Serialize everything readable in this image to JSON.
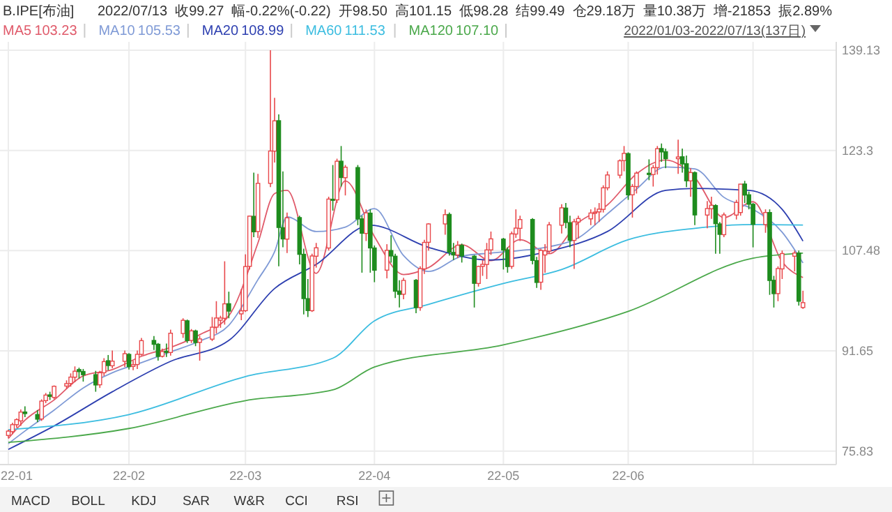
{
  "chart_data": {
    "type": "candlestick",
    "title": "B.IPE[布油]",
    "subtitle": "2022/07/13  收99.27  幅-0.22%(-0.22)  开98.50  高101.15  低98.28  结99.49  仓29.18万  量10.38万  增-21853  振2.89%",
    "x": [
      "2022-01-03",
      "2022-01-04",
      "2022-01-05",
      "2022-01-06",
      "2022-01-07",
      "2022-01-10",
      "2022-01-11",
      "2022-01-12",
      "2022-01-13",
      "2022-01-14",
      "2022-01-17",
      "2022-01-18",
      "2022-01-19",
      "2022-01-20",
      "2022-01-21",
      "2022-01-24",
      "2022-01-25",
      "2022-01-26",
      "2022-01-27",
      "2022-01-28",
      "2022-01-31",
      "2022-02-01",
      "2022-02-02",
      "2022-02-03",
      "2022-02-04",
      "2022-02-07",
      "2022-02-08",
      "2022-02-09",
      "2022-02-10",
      "2022-02-11",
      "2022-02-14",
      "2022-02-15",
      "2022-02-16",
      "2022-02-17",
      "2022-02-18",
      "2022-02-21",
      "2022-02-22",
      "2022-02-23",
      "2022-02-24",
      "2022-02-25",
      "2022-02-28",
      "2022-03-01",
      "2022-03-02",
      "2022-03-03",
      "2022-03-04",
      "2022-03-07",
      "2022-03-08",
      "2022-03-09",
      "2022-03-10",
      "2022-03-11",
      "2022-03-14",
      "2022-03-15",
      "2022-03-16",
      "2022-03-17",
      "2022-03-18",
      "2022-03-21",
      "2022-03-22",
      "2022-03-23",
      "2022-03-24",
      "2022-03-25",
      "2022-03-28",
      "2022-03-29",
      "2022-03-30",
      "2022-03-31",
      "2022-04-01",
      "2022-04-04",
      "2022-04-05",
      "2022-04-06",
      "2022-04-07",
      "2022-04-08",
      "2022-04-11",
      "2022-04-12",
      "2022-04-13",
      "2022-04-14",
      "2022-04-18",
      "2022-04-19",
      "2022-04-20",
      "2022-04-21",
      "2022-04-22",
      "2022-04-25",
      "2022-04-26",
      "2022-04-27",
      "2022-04-28",
      "2022-04-29",
      "2022-05-02",
      "2022-05-03",
      "2022-05-04",
      "2022-05-05",
      "2022-05-06",
      "2022-05-09",
      "2022-05-10",
      "2022-05-11",
      "2022-05-12",
      "2022-05-13",
      "2022-05-16",
      "2022-05-17",
      "2022-05-18",
      "2022-05-19",
      "2022-05-20",
      "2022-05-23",
      "2022-05-24",
      "2022-05-25",
      "2022-05-26",
      "2022-05-27",
      "2022-05-30",
      "2022-05-31",
      "2022-06-01",
      "2022-06-02",
      "2022-06-03",
      "2022-06-06",
      "2022-06-07",
      "2022-06-08",
      "2022-06-09",
      "2022-06-10",
      "2022-06-13",
      "2022-06-14",
      "2022-06-15",
      "2022-06-16",
      "2022-06-17",
      "2022-06-20",
      "2022-06-21",
      "2022-06-22",
      "2022-06-23",
      "2022-06-24",
      "2022-06-27",
      "2022-06-28",
      "2022-06-29",
      "2022-06-30",
      "2022-07-01",
      "2022-07-04",
      "2022-07-05",
      "2022-07-06",
      "2022-07-07",
      "2022-07-08",
      "2022-07-11",
      "2022-07-12",
      "2022-07-13"
    ],
    "ohlc": [
      [
        78.3,
        79.2,
        77.9,
        78.98
      ],
      [
        78.9,
        80.3,
        78.5,
        80.0
      ],
      [
        80.0,
        81.0,
        79.5,
        80.8
      ],
      [
        80.6,
        82.4,
        79.8,
        81.99
      ],
      [
        82.0,
        82.9,
        81.2,
        81.75
      ],
      [
        81.6,
        82.3,
        80.4,
        80.87
      ],
      [
        80.9,
        84.0,
        80.6,
        83.72
      ],
      [
        83.8,
        85.0,
        83.4,
        84.67
      ],
      [
        84.7,
        85.2,
        83.9,
        84.47
      ],
      [
        84.3,
        86.2,
        84.0,
        86.06
      ],
      [
        86.1,
        87.0,
        85.7,
        86.48
      ],
      [
        86.5,
        88.1,
        86.0,
        87.51
      ],
      [
        87.5,
        89.2,
        86.7,
        88.44
      ],
      [
        88.7,
        89.0,
        87.3,
        88.38
      ],
      [
        88.4,
        88.8,
        86.8,
        87.89
      ],
      [
        87.9,
        88.5,
        85.2,
        86.27
      ],
      [
        86.3,
        88.5,
        85.8,
        88.2
      ],
      [
        88.2,
        90.5,
        87.7,
        89.96
      ],
      [
        90.1,
        91.0,
        88.6,
        89.34
      ],
      [
        89.3,
        91.7,
        88.9,
        90.03
      ],
      [
        90.0,
        91.7,
        89.1,
        91.21
      ],
      [
        91.1,
        91.3,
        88.7,
        89.16
      ],
      [
        89.2,
        90.1,
        88.6,
        89.47
      ],
      [
        89.5,
        91.7,
        88.8,
        91.11
      ],
      [
        91.1,
        93.7,
        90.9,
        93.27
      ],
      [
        93.3,
        94.0,
        91.8,
        92.69
      ],
      [
        92.7,
        92.9,
        90.1,
        90.78
      ],
      [
        90.8,
        92.0,
        90.6,
        91.55
      ],
      [
        91.6,
        92.8,
        90.7,
        91.41
      ],
      [
        91.4,
        95.0,
        90.9,
        94.44
      ],
      [
        94.4,
        96.8,
        93.7,
        96.48
      ],
      [
        96.4,
        96.6,
        92.9,
        93.28
      ],
      [
        93.3,
        95.1,
        92.9,
        94.81
      ],
      [
        94.8,
        95.0,
        92.4,
        92.97
      ],
      [
        93.0,
        94.0,
        90.1,
        93.54
      ],
      [
        93.5,
        97.0,
        93.2,
        95.39
      ],
      [
        95.4,
        99.5,
        94.4,
        96.84
      ],
      [
        96.5,
        97.2,
        95.3,
        96.84
      ],
      [
        96.8,
        105.8,
        95.8,
        99.08
      ],
      [
        99.1,
        101.0,
        96.8,
        97.93
      ],
      [
        97.5,
        101.4,
        96.5,
        97.97
      ],
      [
        98.0,
        106.9,
        97.8,
        104.97
      ],
      [
        105.0,
        113.0,
        104.5,
        112.93
      ],
      [
        112.9,
        119.8,
        109.6,
        110.46
      ],
      [
        110.5,
        119.6,
        109.5,
        118.11
      ],
      [
        118.1,
        139.13,
        117.5,
        123.21
      ],
      [
        123.2,
        131.6,
        121.4,
        127.98
      ],
      [
        128.0,
        129.0,
        105.0,
        111.14
      ],
      [
        111.1,
        120.0,
        108.0,
        109.33
      ],
      [
        109.3,
        113.5,
        107.1,
        112.67
      ],
      [
        112.7,
        113.0,
        105.3,
        106.9
      ],
      [
        106.9,
        107.8,
        97.4,
        99.91
      ],
      [
        99.9,
        103.0,
        97.0,
        98.02
      ],
      [
        98.0,
        107.0,
        97.8,
        106.64
      ],
      [
        106.6,
        108.7,
        104.8,
        107.93
      ],
      [
        107.9,
        116.0,
        107.5,
        115.62
      ],
      [
        115.6,
        121.0,
        113.8,
        115.48
      ],
      [
        115.5,
        122.0,
        115.0,
        121.6
      ],
      [
        121.6,
        124.0,
        117.6,
        119.03
      ],
      [
        119.0,
        121.0,
        116.2,
        120.65
      ],
      [
        120.6,
        121.0,
        111.5,
        112.48
      ],
      [
        112.5,
        113.0,
        104.0,
        110.23
      ],
      [
        110.2,
        114.0,
        109.0,
        113.45
      ],
      [
        113.4,
        114.0,
        104.0,
        107.91
      ],
      [
        107.9,
        108.3,
        102.5,
        104.39
      ],
      [
        104.4,
        108.5,
        103.1,
        107.53
      ],
      [
        107.5,
        109.9,
        105.6,
        106.64
      ],
      [
        106.6,
        107.0,
        100.0,
        101.07
      ],
      [
        101.1,
        102.8,
        98.5,
        100.58
      ],
      [
        100.6,
        103.2,
        99.8,
        102.78
      ],
      [
        102.8,
        103.0,
        97.6,
        98.48
      ],
      [
        98.5,
        105.0,
        98.0,
        104.64
      ],
      [
        104.6,
        109.2,
        103.8,
        108.78
      ],
      [
        108.8,
        111.8,
        107.5,
        111.7
      ],
      [
        111.7,
        114.0,
        110.0,
        113.16
      ],
      [
        113.2,
        113.5,
        106.7,
        107.25
      ],
      [
        107.2,
        108.7,
        106.0,
        106.8
      ],
      [
        106.8,
        109.0,
        106.3,
        108.33
      ],
      [
        108.3,
        108.6,
        105.6,
        106.65
      ],
      [
        106.6,
        106.8,
        98.5,
        102.32
      ],
      [
        102.3,
        105.1,
        101.8,
        104.99
      ],
      [
        105.0,
        106.0,
        103.5,
        105.32
      ],
      [
        105.3,
        108.7,
        103.0,
        107.59
      ],
      [
        107.6,
        110.5,
        106.8,
        109.34
      ],
      [
        109.3,
        109.5,
        104.5,
        107.58
      ],
      [
        107.6,
        108.0,
        104.0,
        104.97
      ],
      [
        105.0,
        110.5,
        104.6,
        110.14
      ],
      [
        110.1,
        114.0,
        109.5,
        111.04
      ],
      [
        111.0,
        113.0,
        109.0,
        112.39
      ],
      [
        112.4,
        112.6,
        105.3,
        105.94
      ],
      [
        105.9,
        106.5,
        101.6,
        102.46
      ],
      [
        102.5,
        107.8,
        101.3,
        107.51
      ],
      [
        106.8,
        108.5,
        104.0,
        107.45
      ],
      [
        107.4,
        112.0,
        107.0,
        111.55
      ],
      [
        111.5,
        114.8,
        110.2,
        114.24
      ],
      [
        114.2,
        115.0,
        111.0,
        111.93
      ],
      [
        111.9,
        113.0,
        108.0,
        109.11
      ],
      [
        109.1,
        112.5,
        104.6,
        112.04
      ],
      [
        112.0,
        113.0,
        109.4,
        112.55
      ],
      [
        112.5,
        114.0,
        111.5,
        113.42
      ],
      [
        113.4,
        114.3,
        111.5,
        113.56
      ],
      [
        113.6,
        115.0,
        112.0,
        114.03
      ],
      [
        114.0,
        117.8,
        113.5,
        117.4
      ],
      [
        117.4,
        120.0,
        117.0,
        119.43
      ],
      [
        119.4,
        121.9,
        118.9,
        121.67
      ],
      [
        121.7,
        124.0,
        120.0,
        122.84
      ],
      [
        122.8,
        123.0,
        115.5,
        116.29
      ],
      [
        116.3,
        118.0,
        112.7,
        117.61
      ],
      [
        117.6,
        120.0,
        116.5,
        119.72
      ],
      [
        119.7,
        121.9,
        118.6,
        119.51
      ],
      [
        119.5,
        121.0,
        117.6,
        120.57
      ],
      [
        120.6,
        124.0,
        119.5,
        123.58
      ],
      [
        123.6,
        124.4,
        121.5,
        123.07
      ],
      [
        123.1,
        123.6,
        120.5,
        122.01
      ],
      [
        122.0,
        125.0,
        119.6,
        122.27
      ],
      [
        122.3,
        123.6,
        119.8,
        121.17
      ],
      [
        121.2,
        122.5,
        117.5,
        118.51
      ],
      [
        118.5,
        120.5,
        116.0,
        119.81
      ],
      [
        119.8,
        120.0,
        111.5,
        113.12
      ],
      [
        113.1,
        115.3,
        111.0,
        114.13
      ],
      [
        114.1,
        116.0,
        112.5,
        114.65
      ],
      [
        114.6,
        114.8,
        107.0,
        111.74
      ],
      [
        111.7,
        112.0,
        107.0,
        110.05
      ],
      [
        110.0,
        113.5,
        109.6,
        113.12
      ],
      [
        113.1,
        115.5,
        112.4,
        115.09
      ],
      [
        113.5,
        118.0,
        113.0,
        117.98
      ],
      [
        118.0,
        118.5,
        115.0,
        116.26
      ],
      [
        116.3,
        116.8,
        114.0,
        114.81
      ],
      [
        114.8,
        115.0,
        108.0,
        111.63
      ],
      [
        111.6,
        114.0,
        110.3,
        113.5
      ],
      [
        113.5,
        114.0,
        100.5,
        102.77
      ],
      [
        102.8,
        103.5,
        98.5,
        100.69
      ],
      [
        100.7,
        105.0,
        99.5,
        104.65
      ],
      [
        104.6,
        107.5,
        103.0,
        107.02
      ],
      [
        106.6,
        107.5,
        104.2,
        107.1
      ],
      [
        107.1,
        107.5,
        98.8,
        99.49
      ],
      [
        98.5,
        101.15,
        98.28,
        99.27
      ]
    ],
    "colors": [
      "#e8474a",
      "#e8474a",
      "#e8474a",
      "#e8474a",
      "#1e8c1e",
      "#1e8c1e",
      "#e8474a",
      "#e8474a",
      "#1e8c1e",
      "#e8474a",
      "#e8474a",
      "#e8474a",
      "#e8474a",
      "#1e8c1e",
      "#1e8c1e",
      "#1e8c1e",
      "#e8474a",
      "#e8474a",
      "#1e8c1e",
      "#e8474a",
      "#e8474a",
      "#1e8c1e",
      "#e8474a",
      "#e8474a",
      "#e8474a",
      "#1e8c1e",
      "#1e8c1e",
      "#e8474a",
      "#1e8c1e",
      "#e8474a",
      "#e8474a",
      "#1e8c1e",
      "#e8474a",
      "#1e8c1e",
      "#e8474a",
      "#e8474a",
      "#e8474a",
      "#e8474a",
      "#e8474a",
      "#1e8c1e",
      "#e8474a",
      "#e8474a",
      "#e8474a",
      "#1e8c1e",
      "#e8474a",
      "#e8474a",
      "#e8474a",
      "#1e8c1e",
      "#1e8c1e",
      "#e8474a",
      "#1e8c1e",
      "#1e8c1e",
      "#1e8c1e",
      "#e8474a",
      "#e8474a",
      "#e8474a",
      "#1e8c1e",
      "#e8474a",
      "#1e8c1e",
      "#e8474a",
      "#1e8c1e",
      "#1e8c1e",
      "#e8474a",
      "#1e8c1e",
      "#1e8c1e",
      "#e8474a",
      "#1e8c1e",
      "#1e8c1e",
      "#1e8c1e",
      "#e8474a",
      "#1e8c1e",
      "#e8474a",
      "#e8474a",
      "#e8474a",
      "#e8474a",
      "#1e8c1e",
      "#1e8c1e",
      "#e8474a",
      "#1e8c1e",
      "#1e8c1e",
      "#e8474a",
      "#e8474a",
      "#e8474a",
      "#e8474a",
      "#1e8c1e",
      "#1e8c1e",
      "#e8474a",
      "#e8474a",
      "#e8474a",
      "#1e8c1e",
      "#1e8c1e",
      "#e8474a",
      "#e8474a",
      "#e8474a",
      "#e8474a",
      "#1e8c1e",
      "#1e8c1e",
      "#e8474a",
      "#e8474a",
      "#e8474a",
      "#e8474a",
      "#e8474a",
      "#e8474a",
      "#e8474a",
      "#e8474a",
      "#e8474a",
      "#1e8c1e",
      "#e8474a",
      "#e8474a",
      "#1e8c1e",
      "#e8474a",
      "#e8474a",
      "#1e8c1e",
      "#1e8c1e",
      "#e8474a",
      "#1e8c1e",
      "#1e8c1e",
      "#e8474a",
      "#1e8c1e",
      "#e8474a",
      "#e8474a",
      "#1e8c1e",
      "#1e8c1e",
      "#e8474a",
      "#e8474a",
      "#e8474a",
      "#1e8c1e",
      "#1e8c1e",
      "#1e8c1e",
      "#e8474a",
      "#1e8c1e",
      "#1e8c1e",
      "#e8474a",
      "#e8474a",
      "#e8474a",
      "#1e8c1e",
      "#e8474a"
    ],
    "series": [
      {
        "type": "line",
        "name": "MA5",
        "color": "#e05a6a",
        "x": [
          "2022-01-03",
          "2022-01-07",
          "2022-01-14",
          "2022-01-21",
          "2022-01-28",
          "2022-02-04",
          "2022-02-11",
          "2022-02-18",
          "2022-02-25",
          "2022-03-04",
          "2022-03-08",
          "2022-03-11",
          "2022-03-18",
          "2022-03-25",
          "2022-04-01",
          "2022-04-08",
          "2022-04-14",
          "2022-04-22",
          "2022-04-29",
          "2022-05-06",
          "2022-05-13",
          "2022-05-20",
          "2022-05-27",
          "2022-06-03",
          "2022-06-10",
          "2022-06-17",
          "2022-06-24",
          "2022-07-01",
          "2022-07-08",
          "2022-07-13"
        ],
        "values": [
          77.8,
          80.7,
          83.9,
          87.7,
          88.7,
          90.8,
          92.2,
          94.2,
          97.2,
          108.7,
          116.5,
          117.0,
          103.9,
          118.5,
          109.7,
          103.7,
          104.8,
          108.4,
          105.9,
          109.2,
          107.0,
          111.9,
          114.7,
          119.6,
          121.8,
          119.0,
          112.7,
          115.2,
          105.7,
          103.23
        ]
      },
      {
        "type": "line",
        "name": "MA10",
        "color": "#7f9ad6",
        "x": [
          "2022-01-03",
          "2022-01-07",
          "2022-01-14",
          "2022-01-21",
          "2022-01-28",
          "2022-02-04",
          "2022-02-11",
          "2022-02-18",
          "2022-02-25",
          "2022-03-04",
          "2022-03-08",
          "2022-03-11",
          "2022-03-18",
          "2022-03-25",
          "2022-04-01",
          "2022-04-08",
          "2022-04-14",
          "2022-04-22",
          "2022-04-29",
          "2022-05-06",
          "2022-05-13",
          "2022-05-20",
          "2022-05-27",
          "2022-06-03",
          "2022-06-10",
          "2022-06-17",
          "2022-06-24",
          "2022-07-01",
          "2022-07-08",
          "2022-07-13"
        ],
        "values": [
          77.0,
          79.0,
          82.3,
          85.8,
          88.2,
          89.8,
          91.5,
          93.2,
          95.7,
          102.9,
          107.3,
          112.8,
          110.5,
          111.2,
          114.1,
          106.7,
          104.2,
          106.6,
          107.1,
          107.5,
          108.1,
          109.5,
          113.3,
          117.2,
          120.7,
          120.4,
          115.9,
          114.0,
          110.4,
          105.53
        ]
      },
      {
        "type": "line",
        "name": "MA20",
        "color": "#2d3fb0",
        "x": [
          "2022-01-03",
          "2022-01-14",
          "2022-01-28",
          "2022-02-11",
          "2022-02-25",
          "2022-03-08",
          "2022-03-18",
          "2022-03-31",
          "2022-04-14",
          "2022-04-29",
          "2022-05-13",
          "2022-05-27",
          "2022-06-10",
          "2022-06-17",
          "2022-06-30",
          "2022-07-08",
          "2022-07-13"
        ],
        "values": [
          76.1,
          79.8,
          85.2,
          90.0,
          93.3,
          101.5,
          105.3,
          111.5,
          108.0,
          106.0,
          107.4,
          110.5,
          117.0,
          117.3,
          117.0,
          114.0,
          108.99
        ]
      },
      {
        "type": "line",
        "name": "MA60",
        "color": "#3cbde0",
        "x": [
          "2022-01-03",
          "2022-02-01",
          "2022-03-01",
          "2022-03-22",
          "2022-04-01",
          "2022-04-14",
          "2022-05-02",
          "2022-05-16",
          "2022-06-01",
          "2022-06-17",
          "2022-07-01",
          "2022-07-13"
        ],
        "values": [
          79.2,
          81.6,
          87.6,
          90.5,
          96.4,
          99.0,
          102.3,
          104.5,
          109.2,
          111.0,
          111.6,
          111.53
        ]
      },
      {
        "type": "line",
        "name": "MA120",
        "color": "#4aa84a",
        "x": [
          "2022-01-03",
          "2022-02-01",
          "2022-03-01",
          "2022-03-22",
          "2022-04-01",
          "2022-05-02",
          "2022-06-01",
          "2022-07-01",
          "2022-07-13"
        ],
        "values": [
          77.2,
          79.4,
          83.8,
          85.5,
          89.1,
          92.6,
          97.9,
          106.3,
          107.1
        ]
      }
    ],
    "xlim": [
      "2022-01-01",
      "2022-07-21"
    ],
    "xticks": [
      {
        "value": "2022-01-03",
        "label": "22-01"
      },
      {
        "value": "2022-02-01",
        "label": "22-02"
      },
      {
        "value": "2022-03-01",
        "label": "22-03"
      },
      {
        "value": "2022-04-01",
        "label": "22-04"
      },
      {
        "value": "2022-05-02",
        "label": "22-05"
      },
      {
        "value": "2022-06-01",
        "label": "22-06"
      },
      {
        "value": "2022-07-01",
        "label": null
      }
    ],
    "ylim": [
      73.7,
      140.45
    ],
    "yticks": [
      75.83,
      91.65,
      107.48,
      123.3,
      139.13
    ],
    "grid": true,
    "legend": "top left",
    "annotations": [
      "103.23",
      "105.53",
      "108.99",
      "111.53",
      "107.10",
      "2022/01/03-2022/07/13(137日)",
      "MACD",
      "BOLL",
      "KDJ",
      "SAR",
      "W&R",
      "CCI",
      "RSI"
    ]
  }
}
